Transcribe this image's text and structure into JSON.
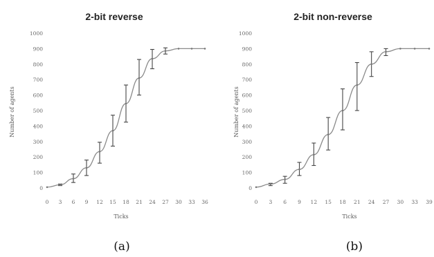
{
  "chart_data": [
    {
      "type": "line",
      "title": "2-bit reverse",
      "caption": "(a)",
      "xlabel": "Ticks",
      "ylabel": "Number of agents",
      "xlim": [
        0,
        36
      ],
      "ylim": [
        0,
        1000
      ],
      "x_ticks": [
        "0",
        "3",
        "6",
        "9",
        "12",
        "15",
        "18",
        "21",
        "24",
        "27",
        "30",
        "33",
        "36"
      ],
      "y_ticks": [
        "0",
        "100",
        "200",
        "300",
        "400",
        "500",
        "600",
        "700",
        "800",
        "900",
        "1000"
      ],
      "series_color": "#8a8a8a",
      "series": [
        {
          "x": [
            0,
            3,
            6,
            9,
            12,
            15,
            18,
            21,
            24,
            27,
            30,
            33,
            36
          ],
          "y": [
            5,
            20,
            60,
            130,
            235,
            370,
            545,
            710,
            835,
            885,
            900,
            900,
            900
          ],
          "err_low": [
            null,
            15,
            35,
            80,
            160,
            270,
            425,
            600,
            770,
            865,
            null,
            null,
            null
          ],
          "err_high": [
            null,
            25,
            90,
            180,
            295,
            470,
            665,
            830,
            895,
            905,
            null,
            null,
            null
          ]
        }
      ]
    },
    {
      "type": "line",
      "title": "2-bit non-reverse",
      "caption": "(b)",
      "xlabel": "Ticks",
      "ylabel": "Number of agents",
      "xlim": [
        0,
        39
      ],
      "ylim": [
        0,
        1000
      ],
      "x_ticks": [
        "0",
        "3",
        "6",
        "9",
        "12",
        "15",
        "18",
        "21",
        "24",
        "27",
        "30",
        "33",
        "39"
      ],
      "y_ticks": [
        "0",
        "100",
        "200",
        "300",
        "400",
        "500",
        "600",
        "700",
        "800",
        "900",
        "1000"
      ],
      "series_color": "#8a8a8a",
      "series": [
        {
          "x": [
            0,
            3,
            6,
            9,
            12,
            15,
            18,
            21,
            24,
            27,
            30,
            33,
            39
          ],
          "y": [
            5,
            25,
            55,
            120,
            215,
            345,
            500,
            665,
            800,
            880,
            900,
            900,
            900
          ],
          "err_low": [
            null,
            15,
            30,
            80,
            145,
            245,
            375,
            500,
            720,
            855,
            null,
            null,
            null
          ],
          "err_high": [
            null,
            30,
            75,
            165,
            290,
            455,
            640,
            810,
            880,
            900,
            null,
            null,
            null
          ]
        }
      ]
    }
  ]
}
